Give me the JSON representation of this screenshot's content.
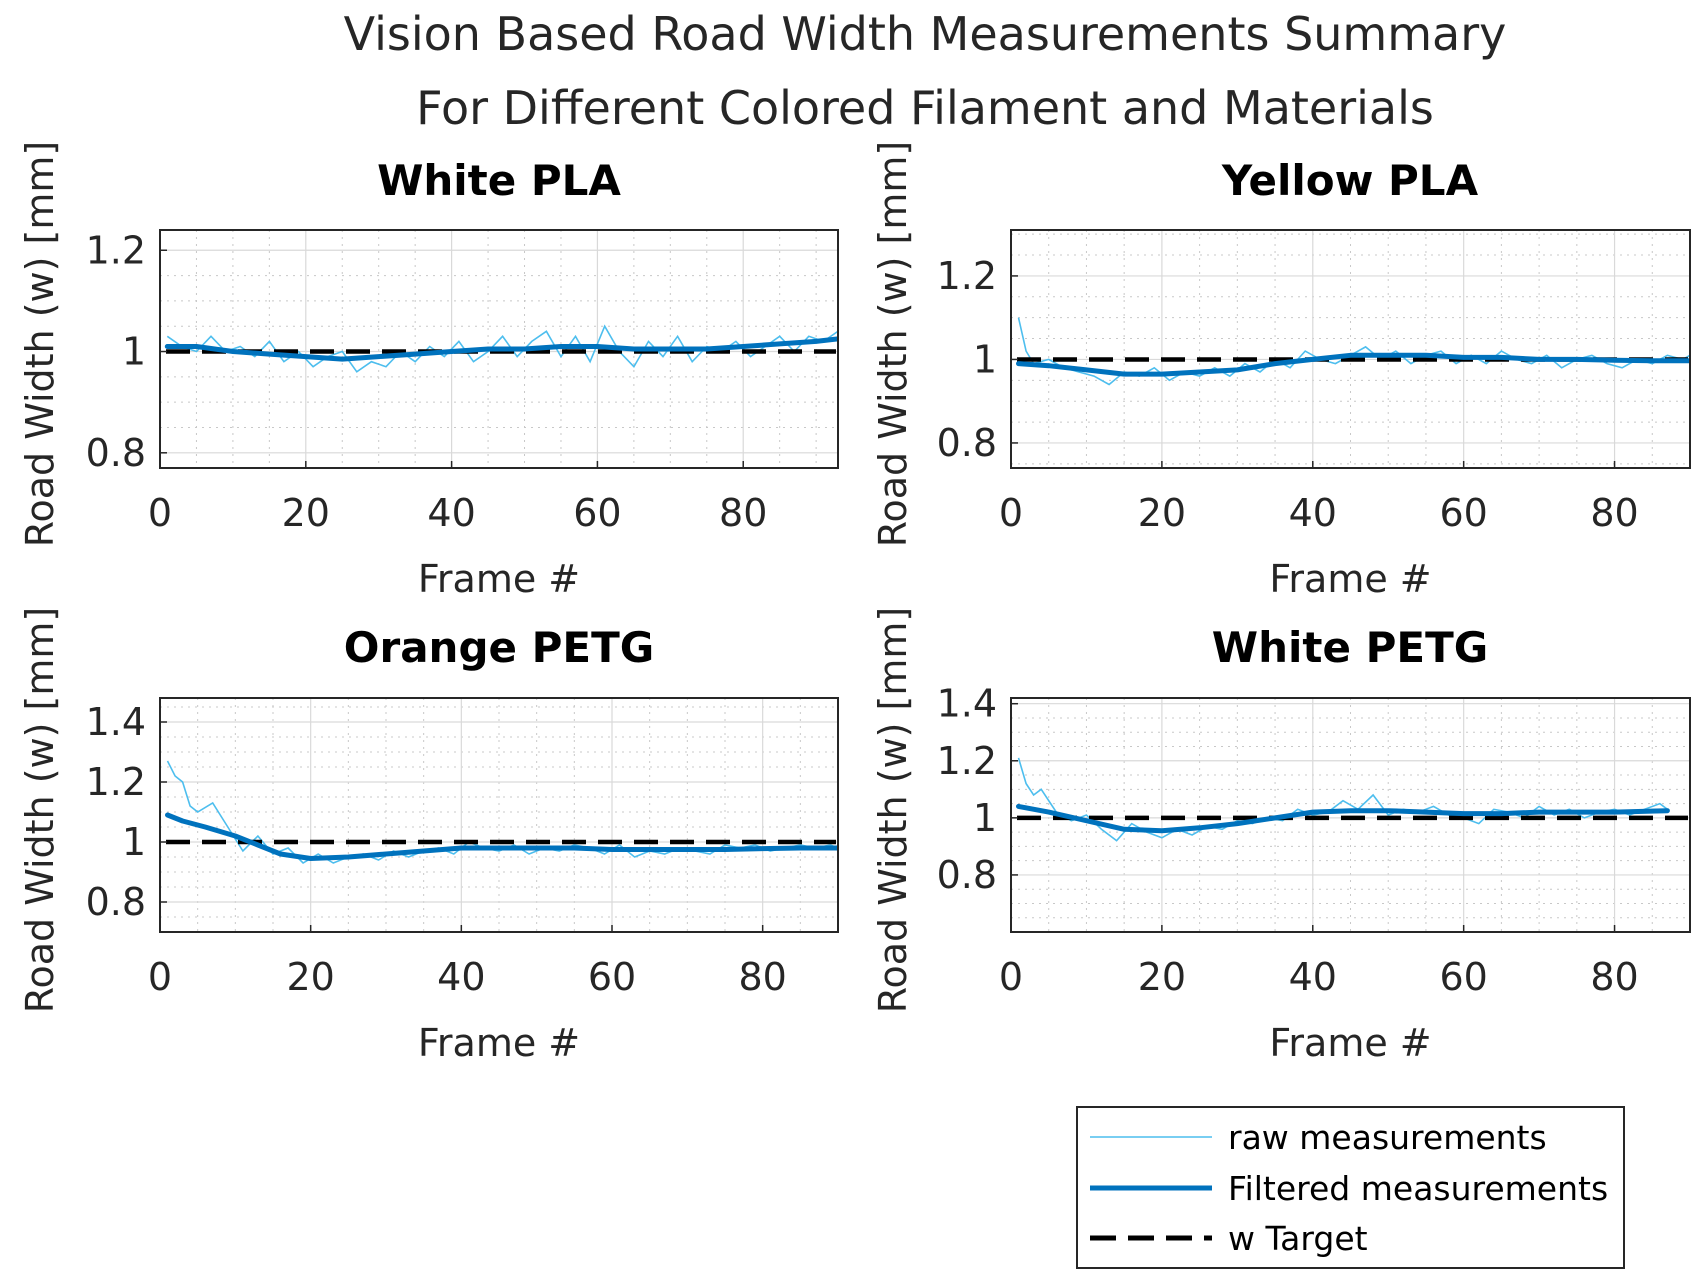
{
  "figure": {
    "title_line1": "Vision Based Road Width Measurements Summary",
    "title_line2": "For Different Colored Filament and Materials"
  },
  "legend": {
    "placement": "bottom-right",
    "items": [
      {
        "label": "raw measurements",
        "style": "thin",
        "color": "#4DBEEE"
      },
      {
        "label": "Filtered measurements",
        "style": "thick",
        "color": "#0072BD"
      },
      {
        "label": "w Target",
        "style": "dashed",
        "color": "#000000"
      }
    ]
  },
  "colors": {
    "raw": "#4DBEEE",
    "filtered": "#0072BD",
    "target": "#000000",
    "grid": "#d9d9d9",
    "axis": "#262626"
  },
  "chart_data": [
    {
      "type": "line",
      "title": "White PLA",
      "xlabel": "Frame #",
      "ylabel": "Road Width (w) [mm]",
      "xlim": [
        0,
        93
      ],
      "ylim": [
        0.77,
        1.24
      ],
      "xticks": [
        0,
        20,
        40,
        60,
        80
      ],
      "xticklabels": [
        "0",
        "20",
        "40",
        "60",
        "80"
      ],
      "yticks": [
        0.8,
        1.0,
        1.2
      ],
      "yticklabels": [
        "0.8",
        "1",
        "1.2"
      ],
      "grid": true,
      "minor_grid": true,
      "target": 1.0,
      "raw_x": [
        1,
        3,
        5,
        7,
        9,
        11,
        13,
        15,
        17,
        19,
        21,
        23,
        25,
        27,
        29,
        31,
        33,
        35,
        37,
        39,
        41,
        43,
        45,
        47,
        49,
        51,
        53,
        55,
        57,
        59,
        61,
        63,
        65,
        67,
        69,
        71,
        73,
        75,
        77,
        79,
        81,
        83,
        85,
        87,
        89,
        91,
        93
      ],
      "raw_y": [
        1.03,
        1.01,
        1.0,
        1.03,
        1.0,
        1.01,
        0.99,
        1.02,
        0.98,
        1.0,
        0.97,
        0.99,
        1.0,
        0.96,
        0.98,
        0.97,
        1.0,
        0.98,
        1.01,
        0.99,
        1.02,
        0.98,
        1.0,
        1.03,
        0.99,
        1.02,
        1.04,
        0.99,
        1.03,
        0.98,
        1.05,
        1.0,
        0.97,
        1.02,
        0.99,
        1.03,
        0.98,
        1.01,
        1.0,
        1.02,
        0.99,
        1.01,
        1.03,
        1.0,
        1.03,
        1.02,
        1.04
      ],
      "filtered_x": [
        1,
        5,
        10,
        15,
        20,
        25,
        30,
        35,
        40,
        45,
        50,
        55,
        60,
        65,
        70,
        75,
        80,
        85,
        90,
        93
      ],
      "filtered_y": [
        1.01,
        1.01,
        1.0,
        0.995,
        0.99,
        0.985,
        0.99,
        0.995,
        1.0,
        1.005,
        1.005,
        1.01,
        1.01,
        1.005,
        1.005,
        1.005,
        1.01,
        1.015,
        1.02,
        1.025
      ]
    },
    {
      "type": "line",
      "title": "Yellow PLA",
      "xlabel": "Frame #",
      "ylabel": "Road Width (w) [mm]",
      "xlim": [
        0,
        90
      ],
      "ylim": [
        0.74,
        1.31
      ],
      "xticks": [
        0,
        20,
        40,
        60,
        80
      ],
      "xticklabels": [
        "0",
        "20",
        "40",
        "60",
        "80"
      ],
      "yticks": [
        0.8,
        1.0,
        1.2
      ],
      "yticklabels": [
        "0.8",
        "1",
        "1.2"
      ],
      "grid": true,
      "minor_grid": true,
      "target": 1.0,
      "raw_x": [
        1,
        2,
        3,
        5,
        7,
        9,
        11,
        13,
        15,
        17,
        19,
        21,
        23,
        25,
        27,
        29,
        31,
        33,
        35,
        37,
        39,
        41,
        43,
        45,
        47,
        49,
        51,
        53,
        55,
        57,
        59,
        61,
        63,
        65,
        67,
        69,
        71,
        73,
        75,
        77,
        79,
        81,
        83,
        85,
        87,
        89,
        90
      ],
      "raw_y": [
        1.1,
        1.02,
        0.99,
        1.0,
        0.98,
        0.97,
        0.96,
        0.94,
        0.97,
        0.96,
        0.98,
        0.95,
        0.97,
        0.96,
        0.98,
        0.96,
        0.99,
        0.97,
        1.0,
        0.98,
        1.02,
        1.0,
        0.99,
        1.01,
        1.03,
        1.0,
        1.02,
        0.99,
        1.01,
        1.02,
        0.99,
        1.01,
        0.99,
        1.02,
        1.0,
        0.99,
        1.01,
        0.98,
        1.0,
        1.01,
        0.99,
        0.98,
        1.0,
        0.99,
        1.01,
        1.0,
        1.01
      ],
      "filtered_x": [
        1,
        5,
        10,
        15,
        20,
        25,
        30,
        35,
        40,
        45,
        50,
        55,
        60,
        65,
        70,
        75,
        80,
        85,
        90
      ],
      "filtered_y": [
        0.99,
        0.985,
        0.975,
        0.965,
        0.965,
        0.97,
        0.975,
        0.99,
        1.0,
        1.01,
        1.01,
        1.01,
        1.005,
        1.005,
        1.0,
        1.0,
        0.998,
        0.997,
        0.997
      ]
    },
    {
      "type": "line",
      "title": "Orange PETG",
      "xlabel": "Frame #",
      "ylabel": "Road Width (w) [mm]",
      "xlim": [
        0,
        90
      ],
      "ylim": [
        0.7,
        1.48
      ],
      "xticks": [
        0,
        20,
        40,
        60,
        80
      ],
      "xticklabels": [
        "0",
        "20",
        "40",
        "60",
        "80"
      ],
      "yticks": [
        0.8,
        1.0,
        1.2,
        1.4
      ],
      "yticklabels": [
        "0.8",
        "1",
        "1.2",
        "1.4"
      ],
      "grid": true,
      "minor_grid": true,
      "target": 1.0,
      "raw_x": [
        1,
        2,
        3,
        4,
        5,
        7,
        9,
        11,
        13,
        15,
        17,
        19,
        21,
        23,
        25,
        27,
        29,
        31,
        33,
        35,
        37,
        39,
        41,
        43,
        45,
        47,
        49,
        51,
        53,
        55,
        57,
        59,
        61,
        63,
        65,
        67,
        69,
        71,
        73,
        75,
        77,
        79,
        81,
        83,
        85,
        87,
        89,
        90
      ],
      "raw_y": [
        1.27,
        1.22,
        1.2,
        1.12,
        1.1,
        1.13,
        1.05,
        0.97,
        1.02,
        0.96,
        0.98,
        0.93,
        0.96,
        0.93,
        0.95,
        0.96,
        0.94,
        0.97,
        0.95,
        0.97,
        0.98,
        0.96,
        1.0,
        0.98,
        0.97,
        0.99,
        0.96,
        0.98,
        0.97,
        0.99,
        0.98,
        0.96,
        0.99,
        0.95,
        0.97,
        0.96,
        0.98,
        0.97,
        0.96,
        0.99,
        0.98,
        0.99,
        0.97,
        0.98,
        0.99,
        0.98,
        0.99,
        0.98
      ],
      "filtered_x": [
        1,
        3,
        6,
        10,
        13,
        16,
        20,
        25,
        30,
        35,
        40,
        45,
        50,
        55,
        60,
        65,
        70,
        75,
        80,
        85,
        90
      ],
      "filtered_y": [
        1.09,
        1.07,
        1.05,
        1.02,
        0.99,
        0.96,
        0.945,
        0.95,
        0.96,
        0.97,
        0.98,
        0.98,
        0.98,
        0.98,
        0.975,
        0.975,
        0.975,
        0.975,
        0.978,
        0.98,
        0.98
      ]
    },
    {
      "type": "line",
      "title": "White PETG",
      "xlabel": "Frame #",
      "ylabel": "Road Width (w) [mm]",
      "xlim": [
        0,
        90
      ],
      "ylim": [
        0.6,
        1.42
      ],
      "xticks": [
        0,
        20,
        40,
        60,
        80
      ],
      "xticklabels": [
        "0",
        "20",
        "40",
        "60",
        "80"
      ],
      "yticks": [
        0.8,
        1.0,
        1.2,
        1.4
      ],
      "yticklabels": [
        "0.8",
        "1",
        "1.2",
        "1.4"
      ],
      "grid": true,
      "minor_grid": true,
      "target": 1.0,
      "raw_x": [
        1,
        2,
        3,
        4,
        6,
        8,
        10,
        12,
        14,
        16,
        18,
        20,
        22,
        24,
        26,
        28,
        30,
        32,
        34,
        36,
        38,
        40,
        42,
        44,
        46,
        48,
        50,
        52,
        54,
        56,
        58,
        60,
        62,
        64,
        66,
        68,
        70,
        72,
        74,
        76,
        78,
        80,
        82,
        84,
        86,
        87
      ],
      "raw_y": [
        1.21,
        1.12,
        1.08,
        1.1,
        1.02,
        0.99,
        1.01,
        0.96,
        0.92,
        0.98,
        0.95,
        0.93,
        0.96,
        0.94,
        0.97,
        0.96,
        0.99,
        0.98,
        1.0,
        0.99,
        1.03,
        1.01,
        1.02,
        1.06,
        1.03,
        1.08,
        1.01,
        1.03,
        1.02,
        1.04,
        1.01,
        1.0,
        0.98,
        1.03,
        1.02,
        1.0,
        1.04,
        1.01,
        1.03,
        1.0,
        1.02,
        1.03,
        1.01,
        1.03,
        1.05,
        1.03
      ],
      "filtered_x": [
        1,
        5,
        10,
        15,
        20,
        25,
        30,
        35,
        40,
        45,
        50,
        55,
        60,
        65,
        70,
        75,
        80,
        87
      ],
      "filtered_y": [
        1.04,
        1.02,
        0.99,
        0.96,
        0.955,
        0.965,
        0.98,
        1.0,
        1.02,
        1.025,
        1.025,
        1.02,
        1.015,
        1.015,
        1.02,
        1.02,
        1.02,
        1.025
      ]
    }
  ]
}
